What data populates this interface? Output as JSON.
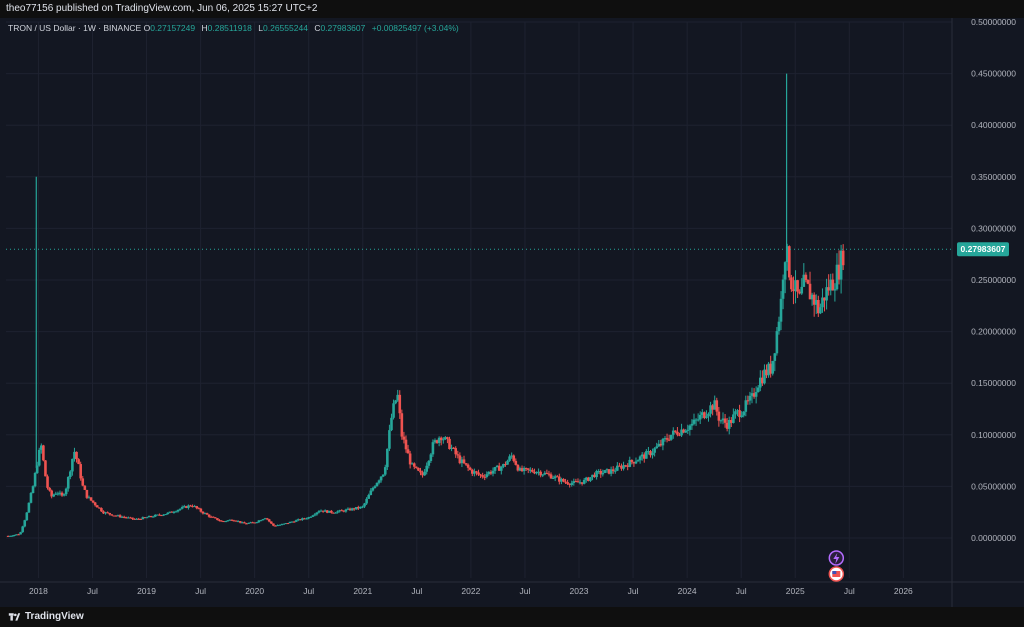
{
  "header": {
    "publisher": "theo77156 published on TradingView.com, Jun 06, 2025 15:27 UTC+2"
  },
  "legend": {
    "symbol": "TRON / US Dollar · 1W · BINANCE",
    "open_label": "O",
    "open": "0.27157249",
    "high_label": "H",
    "high": "0.28511918",
    "low_label": "L",
    "low": "0.26555244",
    "close_label": "C",
    "close": "0.27983607",
    "change": "+0.00825497 (+3.04%)"
  },
  "footer": {
    "brand": "TradingView"
  },
  "colors": {
    "up": "#26a69a",
    "down": "#ef5350",
    "background": "#131722",
    "grid": "#1e2230",
    "price_tag": "#26a69a"
  },
  "icons": [
    "lightning-event-icon",
    "us-flag-event-icon"
  ],
  "chart_data": {
    "type": "candlestick",
    "series_name": "TRON / US Dollar",
    "interval": "1W",
    "exchange": "BINANCE",
    "last_price": "0.27983607",
    "ylim": [
      0,
      0.5
    ],
    "y_ticks": [
      "0.00000000",
      "0.05000000",
      "0.10000000",
      "0.15000000",
      "0.20000000",
      "0.25000000",
      "0.30000000",
      "0.35000000",
      "0.40000000",
      "0.45000000",
      "0.50000000"
    ],
    "x_ticks": [
      "2018",
      "Jul",
      "2019",
      "Jul",
      "2020",
      "Jul",
      "2021",
      "Jul",
      "2022",
      "Jul",
      "2023",
      "Jul",
      "2024",
      "Jul",
      "2025",
      "Jul",
      "2026"
    ],
    "x_range": [
      2017.7,
      2026.45
    ],
    "grid": true,
    "price_path": [
      [
        2017.72,
        0.002
      ],
      [
        2017.83,
        0.004
      ],
      [
        2017.88,
        0.02
      ],
      [
        2017.95,
        0.05
      ],
      [
        2018.0,
        0.08
      ],
      [
        2018.03,
        0.09
      ],
      [
        2018.05,
        0.07
      ],
      [
        2018.08,
        0.05
      ],
      [
        2018.12,
        0.04
      ],
      [
        2018.17,
        0.045
      ],
      [
        2018.22,
        0.04
      ],
      [
        2018.26,
        0.05
      ],
      [
        2018.3,
        0.07
      ],
      [
        2018.33,
        0.085
      ],
      [
        2018.37,
        0.07
      ],
      [
        2018.41,
        0.05
      ],
      [
        2018.45,
        0.04
      ],
      [
        2018.5,
        0.035
      ],
      [
        2018.55,
        0.03
      ],
      [
        2018.6,
        0.025
      ],
      [
        2018.7,
        0.022
      ],
      [
        2018.8,
        0.02
      ],
      [
        2018.9,
        0.018
      ],
      [
        2019.0,
        0.02
      ],
      [
        2019.1,
        0.022
      ],
      [
        2019.2,
        0.024
      ],
      [
        2019.3,
        0.028
      ],
      [
        2019.42,
        0.032
      ],
      [
        2019.5,
        0.026
      ],
      [
        2019.6,
        0.02
      ],
      [
        2019.7,
        0.016
      ],
      [
        2019.8,
        0.018
      ],
      [
        2019.9,
        0.014
      ],
      [
        2020.0,
        0.015
      ],
      [
        2020.1,
        0.02
      ],
      [
        2020.17,
        0.012
      ],
      [
        2020.25,
        0.013
      ],
      [
        2020.35,
        0.016
      ],
      [
        2020.5,
        0.02
      ],
      [
        2020.6,
        0.027
      ],
      [
        2020.7,
        0.025
      ],
      [
        2020.8,
        0.026
      ],
      [
        2020.9,
        0.028
      ],
      [
        2021.0,
        0.03
      ],
      [
        2021.1,
        0.05
      ],
      [
        2021.2,
        0.065
      ],
      [
        2021.27,
        0.12
      ],
      [
        2021.32,
        0.14
      ],
      [
        2021.36,
        0.1
      ],
      [
        2021.45,
        0.07
      ],
      [
        2021.55,
        0.06
      ],
      [
        2021.65,
        0.09
      ],
      [
        2021.72,
        0.1
      ],
      [
        2021.8,
        0.09
      ],
      [
        2021.9,
        0.075
      ],
      [
        2022.0,
        0.065
      ],
      [
        2022.1,
        0.06
      ],
      [
        2022.2,
        0.065
      ],
      [
        2022.3,
        0.07
      ],
      [
        2022.38,
        0.08
      ],
      [
        2022.45,
        0.065
      ],
      [
        2022.6,
        0.065
      ],
      [
        2022.75,
        0.06
      ],
      [
        2022.85,
        0.055
      ],
      [
        2022.95,
        0.053
      ],
      [
        2023.05,
        0.055
      ],
      [
        2023.15,
        0.062
      ],
      [
        2023.3,
        0.065
      ],
      [
        2023.45,
        0.072
      ],
      [
        2023.55,
        0.077
      ],
      [
        2023.65,
        0.082
      ],
      [
        2023.75,
        0.09
      ],
      [
        2023.85,
        0.1
      ],
      [
        2023.95,
        0.105
      ],
      [
        2024.05,
        0.11
      ],
      [
        2024.15,
        0.12
      ],
      [
        2024.25,
        0.13
      ],
      [
        2024.3,
        0.115
      ],
      [
        2024.38,
        0.11
      ],
      [
        2024.45,
        0.12
      ],
      [
        2024.52,
        0.125
      ],
      [
        2024.6,
        0.135
      ],
      [
        2024.65,
        0.15
      ],
      [
        2024.72,
        0.16
      ],
      [
        2024.78,
        0.165
      ],
      [
        2024.83,
        0.2
      ],
      [
        2024.87,
        0.23
      ],
      [
        2024.9,
        0.28
      ],
      [
        2024.93,
        0.27
      ],
      [
        2024.96,
        0.25
      ],
      [
        2025.0,
        0.24
      ],
      [
        2025.04,
        0.23
      ],
      [
        2025.08,
        0.245
      ],
      [
        2025.12,
        0.24
      ],
      [
        2025.18,
        0.23
      ],
      [
        2025.22,
        0.22
      ],
      [
        2025.27,
        0.235
      ],
      [
        2025.32,
        0.245
      ],
      [
        2025.36,
        0.25
      ],
      [
        2025.4,
        0.26
      ],
      [
        2025.43,
        0.27
      ],
      [
        2025.45,
        0.28
      ]
    ],
    "spikes": [
      {
        "x": 2017.98,
        "high": 0.35
      },
      {
        "x": 2024.92,
        "high": 0.45
      }
    ]
  }
}
